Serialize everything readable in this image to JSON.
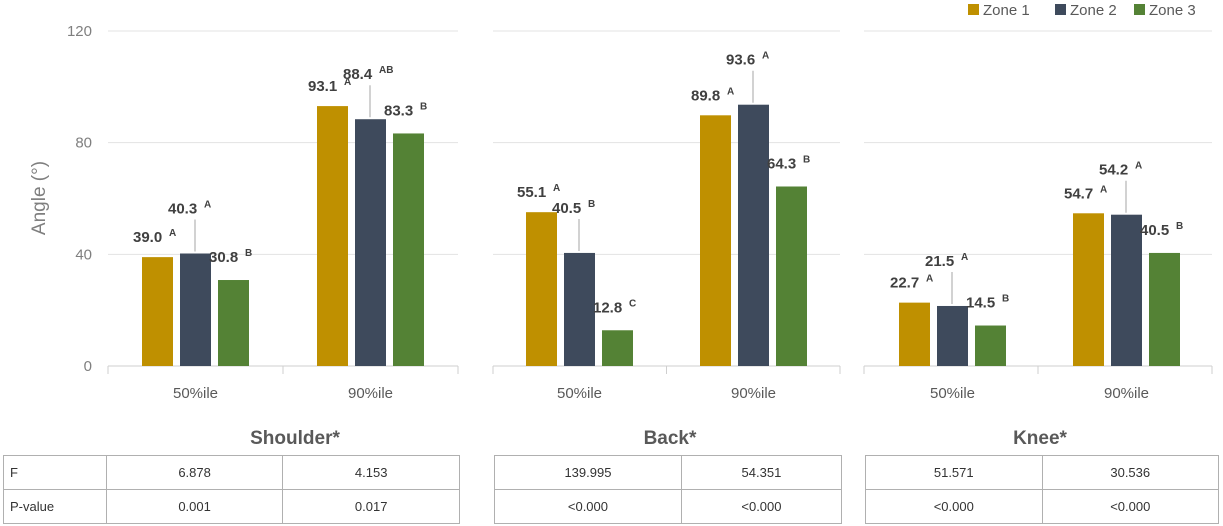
{
  "chart_data": {
    "type": "bar",
    "ylabel": "Angle (°)",
    "ylim": [
      0,
      120
    ],
    "yticks": [
      0,
      40,
      80,
      120
    ],
    "grid": true,
    "legend_position": "top-right",
    "series": [
      {
        "name": "Zone 1",
        "color": "#bf9000"
      },
      {
        "name": "Zone 2",
        "color": "#3e4a5c"
      },
      {
        "name": "Zone 3",
        "color": "#548235"
      }
    ],
    "panels": [
      {
        "title": "Shoulder*",
        "categories": [
          "50%ile",
          "90%ile"
        ],
        "groups": [
          {
            "values": [
              39.0,
              40.3,
              30.8
            ],
            "labels": [
              "39.0",
              "40.3",
              "30.8"
            ],
            "letters": [
              "A",
              "A",
              "B"
            ]
          },
          {
            "values": [
              93.1,
              88.4,
              83.3
            ],
            "labels": [
              "93.1",
              "88.4",
              "83.3"
            ],
            "letters": [
              "A",
              "AB",
              "B"
            ]
          }
        ],
        "stats": {
          "F": [
            "6.878",
            "4.153"
          ],
          "P-value": [
            "0.001",
            "0.017"
          ]
        }
      },
      {
        "title": "Back*",
        "categories": [
          "50%ile",
          "90%ile"
        ],
        "groups": [
          {
            "values": [
              55.1,
              40.5,
              12.8
            ],
            "labels": [
              "55.1",
              "40.5",
              "12.8"
            ],
            "letters": [
              "A",
              "B",
              "C"
            ]
          },
          {
            "values": [
              89.8,
              93.6,
              64.3
            ],
            "labels": [
              "89.8",
              "93.6",
              "64.3"
            ],
            "letters": [
              "A",
              "A",
              "B"
            ]
          }
        ],
        "stats": {
          "F": [
            "139.995",
            "54.351"
          ],
          "P-value": [
            "<0.000",
            "<0.000"
          ]
        }
      },
      {
        "title": "Knee*",
        "categories": [
          "50%ile",
          "90%ile"
        ],
        "groups": [
          {
            "values": [
              22.7,
              21.5,
              14.5
            ],
            "labels": [
              "22.7",
              "21.5",
              "14.5"
            ],
            "letters": [
              "A",
              "A",
              "B"
            ]
          },
          {
            "values": [
              54.7,
              54.2,
              40.5
            ],
            "labels": [
              "54.7",
              "54.2",
              "40.5"
            ],
            "letters": [
              "A",
              "A",
              "B"
            ]
          }
        ],
        "stats": {
          "F": [
            "51.571",
            "30.536"
          ],
          "P-value": [
            "<0.000",
            "<0.000"
          ]
        }
      }
    ]
  },
  "table_row_labels": [
    "F",
    "P-value"
  ]
}
